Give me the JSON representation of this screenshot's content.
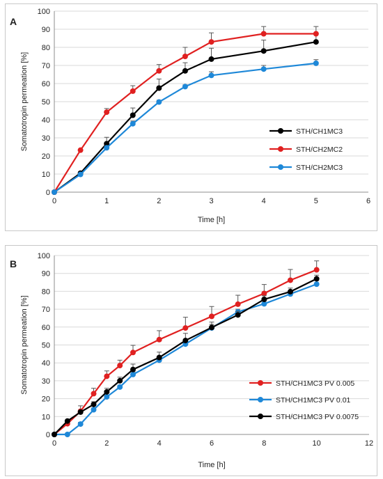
{
  "chart_data": [
    {
      "type": "line",
      "panel_label": "A",
      "xlabel": "Time [h]",
      "ylabel": "Somatotropin permeation [%]",
      "xlim": [
        0,
        6
      ],
      "ylim": [
        0,
        100
      ],
      "xticks": [
        0,
        1,
        2,
        3,
        4,
        5,
        6
      ],
      "yticks": [
        0,
        10,
        20,
        30,
        40,
        50,
        60,
        70,
        80,
        90,
        100
      ],
      "grid": true,
      "legend_position": "right",
      "series": [
        {
          "name": "STH/CH1MC3",
          "color": "#000000",
          "x": [
            0,
            0.5,
            1,
            1.5,
            2,
            2.5,
            3,
            4,
            5
          ],
          "y": [
            0,
            10.5,
            26.8,
            42.5,
            57.5,
            67,
            73.5,
            78,
            83
          ],
          "err": [
            0,
            0.8,
            3.5,
            4,
            5,
            4.5,
            6,
            6,
            4
          ]
        },
        {
          "name": "STH/CH2MC2",
          "color": "#e02020",
          "x": [
            0,
            0.5,
            1,
            1.5,
            2,
            2.5,
            3,
            4,
            5
          ],
          "y": [
            0,
            23.2,
            44.2,
            55.8,
            67,
            75,
            83,
            87.5,
            87.5
          ],
          "err": [
            0,
            0.5,
            2,
            3,
            3.5,
            5,
            5,
            4,
            4
          ]
        },
        {
          "name": "STH/CH2MC3",
          "color": "#1e88d8",
          "x": [
            0,
            0.5,
            1,
            1.5,
            2,
            2.5,
            3,
            4,
            5
          ],
          "y": [
            0,
            9.8,
            24.5,
            37.8,
            49.8,
            58.3,
            64.5,
            68,
            71.2
          ],
          "err": [
            0,
            0.5,
            1,
            1.5,
            1,
            1,
            2,
            2,
            2
          ]
        }
      ]
    },
    {
      "type": "line",
      "panel_label": "B",
      "xlabel": "Time [h]",
      "ylabel": "Somatotropin permeation [%]",
      "xlim": [
        0,
        12
      ],
      "ylim": [
        0,
        100
      ],
      "xticks": [
        0,
        2,
        4,
        6,
        8,
        10,
        12
      ],
      "yticks": [
        0,
        10,
        20,
        30,
        40,
        50,
        60,
        70,
        80,
        90,
        100
      ],
      "grid": true,
      "legend_position": "bottom-right",
      "series": [
        {
          "name": "STH/CH1MC3 PV 0.005",
          "color": "#e02020",
          "x": [
            0,
            0.5,
            1,
            1.5,
            2,
            2.5,
            3,
            4,
            5,
            6,
            7,
            8,
            9,
            10
          ],
          "y": [
            0,
            6,
            13,
            22.8,
            32.5,
            38.5,
            45.8,
            53,
            59.5,
            66,
            72.8,
            78.8,
            86.2,
            92
          ],
          "err": [
            0,
            1,
            3,
            3,
            3,
            3,
            4,
            5,
            6,
            5.5,
            5,
            5,
            6,
            5
          ]
        },
        {
          "name": "STH/CH1MC3 PV 0.01",
          "color": "#1e88d8",
          "x": [
            0,
            0.5,
            1,
            1.5,
            2,
            2.5,
            3,
            4,
            5,
            6,
            7,
            8,
            9,
            10
          ],
          "y": [
            0,
            0,
            5.8,
            13.8,
            21,
            26.5,
            33.5,
            41.5,
            50.5,
            59.5,
            68.5,
            73,
            78.5,
            84
          ],
          "err": [
            0,
            0,
            1,
            1,
            1,
            1,
            1.5,
            1.5,
            2,
            2,
            1.5,
            1.5,
            2,
            2
          ]
        },
        {
          "name": "STH/CH1MC3 PV 0.0075",
          "color": "#000000",
          "x": [
            0,
            0.5,
            1,
            1.5,
            2,
            2.5,
            3,
            4,
            5,
            6,
            7,
            8,
            9,
            10
          ],
          "y": [
            0,
            7.5,
            12.5,
            16.8,
            23.8,
            30,
            36.3,
            43,
            52.5,
            59.8,
            66.8,
            75.5,
            79.8,
            87
          ],
          "err": [
            0,
            0.5,
            1,
            1.5,
            2,
            2,
            3,
            3,
            4,
            3,
            2,
            2,
            2,
            2
          ]
        }
      ]
    }
  ]
}
